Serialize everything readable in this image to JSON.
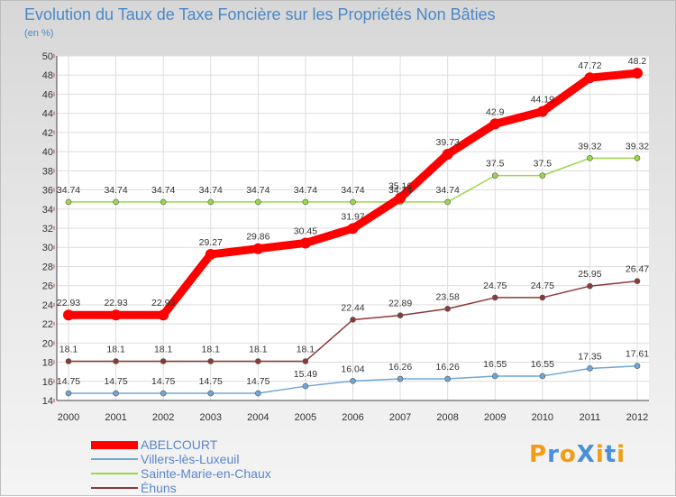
{
  "title": "Evolution du Taux de Taxe Foncière sur les Propriétés Non Bâties",
  "subtitle": "(en %)",
  "chart_data": {
    "type": "line",
    "title": "Evolution du Taux de Taxe Foncière sur les Propriétés Non Bâties",
    "ylabel": "(en %)",
    "xlabel": "",
    "x": [
      "2000",
      "2001",
      "2002",
      "2003",
      "2004",
      "2005",
      "2006",
      "2007",
      "2008",
      "2009",
      "2010",
      "2011",
      "2012"
    ],
    "ylim": [
      14,
      50
    ],
    "yticks": [
      "14",
      "16",
      "18",
      "20",
      "22",
      "24",
      "26",
      "28",
      "30",
      "32",
      "34",
      "36",
      "38",
      "40",
      "42",
      "44",
      "46",
      "48",
      "50"
    ],
    "series": [
      {
        "name": "ABELCOURT",
        "color": "#ff0000",
        "values": [
          22.93,
          22.93,
          22.93,
          29.27,
          29.86,
          30.45,
          31.97,
          35.16,
          39.73,
          42.9,
          44.19,
          47.72,
          48.2
        ],
        "labels": [
          "22.93",
          "22.93",
          "22.93",
          "29.27",
          "29.86",
          "30.45",
          "31.97",
          "35.16",
          "39.73",
          "42.9",
          "44.19",
          "47.72",
          "48.2"
        ]
      },
      {
        "name": "Villers-lès-Luxeuil",
        "color": "#6fa6d6",
        "values": [
          14.75,
          14.75,
          14.75,
          14.75,
          14.75,
          15.49,
          16.04,
          16.26,
          16.26,
          16.55,
          16.55,
          17.35,
          17.61
        ],
        "labels": [
          "14.75",
          "14.75",
          "14.75",
          "14.75",
          "14.75",
          "15.49",
          "16.04",
          "16.26",
          "16.26",
          "16.55",
          "16.55",
          "17.35",
          "17.61"
        ]
      },
      {
        "name": "Sainte-Marie-en-Chaux",
        "color": "#9ad84a",
        "values": [
          34.74,
          34.74,
          34.74,
          34.74,
          34.74,
          34.74,
          34.74,
          34.74,
          34.74,
          37.5,
          37.5,
          39.32,
          39.32
        ],
        "labels": [
          "34.74",
          "34.74",
          "34.74",
          "34.74",
          "34.74",
          "34.74",
          "34.74",
          "34.74",
          "34.74",
          "37.5",
          "37.5",
          "39.32",
          "39.32"
        ]
      },
      {
        "name": "Éhuns",
        "color": "#8a3a3a",
        "values": [
          18.1,
          18.1,
          18.1,
          18.1,
          18.1,
          18.1,
          22.44,
          22.89,
          23.58,
          24.75,
          24.75,
          25.95,
          26.47
        ],
        "labels": [
          "18.1",
          "18.1",
          "18.1",
          "18.1",
          "18.1",
          "18.1",
          "22.44",
          "22.89",
          "23.58",
          "24.75",
          "24.75",
          "25.95",
          "26.47"
        ]
      }
    ],
    "grid": true,
    "legend": "bottom-left"
  },
  "logo": {
    "text": "ProXiti",
    "letters": [
      "P",
      "r",
      "o",
      "X",
      "i",
      "t",
      "i"
    ],
    "colors": [
      "#f39c12",
      "#4a90d9",
      "#f39c12",
      "#4a90d9",
      "#f39c12",
      "#4a90d9",
      "#f39c12"
    ]
  }
}
